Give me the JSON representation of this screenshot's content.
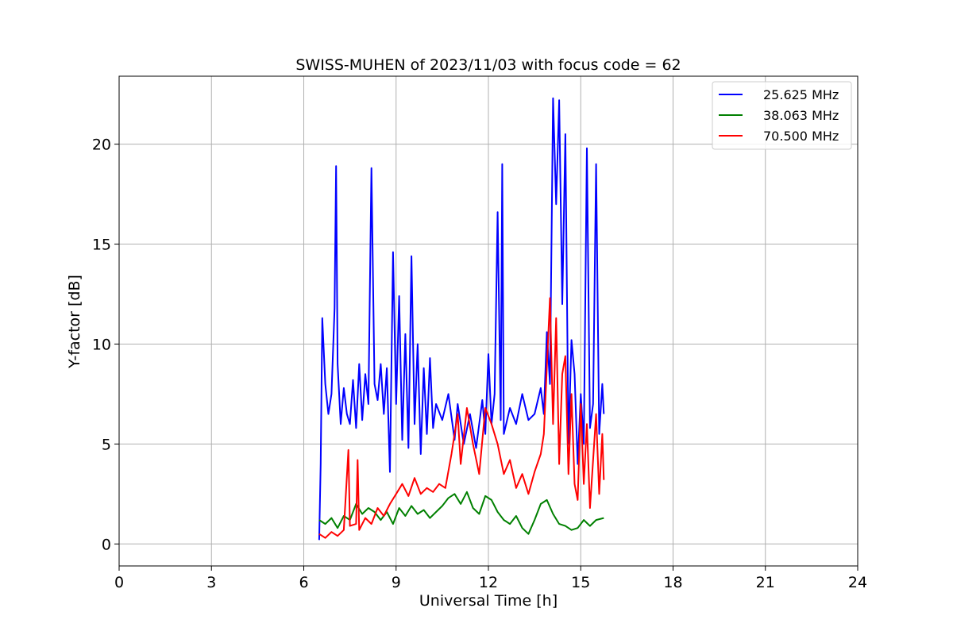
{
  "chart_data": {
    "type": "line",
    "title": "SWISS-MUHEN of 2023/11/03 with focus code = 62",
    "xlabel": "Universal Time [h]",
    "ylabel": "Y-factor [dB]",
    "xlim": [
      0,
      24
    ],
    "ylim": [
      -1.1,
      23.4
    ],
    "xticks": [
      0,
      3,
      6,
      9,
      12,
      15,
      18,
      21,
      24
    ],
    "yticks": [
      0,
      5,
      10,
      15,
      20
    ],
    "grid": true,
    "legend_position": "top-right",
    "series": [
      {
        "name": "25.625 MHz",
        "color": "#0000ff",
        "points": [
          [
            6.5,
            0.2
          ],
          [
            6.55,
            4.0
          ],
          [
            6.6,
            11.3
          ],
          [
            6.7,
            8.0
          ],
          [
            6.8,
            6.5
          ],
          [
            6.9,
            7.5
          ],
          [
            7.0,
            11.8
          ],
          [
            7.05,
            18.9
          ],
          [
            7.1,
            9.0
          ],
          [
            7.2,
            6.0
          ],
          [
            7.3,
            7.8
          ],
          [
            7.4,
            6.5
          ],
          [
            7.5,
            6.0
          ],
          [
            7.6,
            8.2
          ],
          [
            7.7,
            5.8
          ],
          [
            7.8,
            9.0
          ],
          [
            7.9,
            6.2
          ],
          [
            8.0,
            8.5
          ],
          [
            8.1,
            7.0
          ],
          [
            8.2,
            18.8
          ],
          [
            8.3,
            8.0
          ],
          [
            8.4,
            7.2
          ],
          [
            8.5,
            9.0
          ],
          [
            8.6,
            6.5
          ],
          [
            8.7,
            8.8
          ],
          [
            8.8,
            3.6
          ],
          [
            8.9,
            14.6
          ],
          [
            9.0,
            7.0
          ],
          [
            9.1,
            12.4
          ],
          [
            9.2,
            5.2
          ],
          [
            9.3,
            10.5
          ],
          [
            9.4,
            4.8
          ],
          [
            9.5,
            14.4
          ],
          [
            9.6,
            6.0
          ],
          [
            9.7,
            10.0
          ],
          [
            9.8,
            4.5
          ],
          [
            9.9,
            8.8
          ],
          [
            10.0,
            5.5
          ],
          [
            10.1,
            9.3
          ],
          [
            10.2,
            5.8
          ],
          [
            10.3,
            7.0
          ],
          [
            10.5,
            6.2
          ],
          [
            10.7,
            7.5
          ],
          [
            10.9,
            5.2
          ],
          [
            11.0,
            7.0
          ],
          [
            11.2,
            5.0
          ],
          [
            11.4,
            6.5
          ],
          [
            11.6,
            4.8
          ],
          [
            11.8,
            7.2
          ],
          [
            11.9,
            5.5
          ],
          [
            12.0,
            9.5
          ],
          [
            12.1,
            6.0
          ],
          [
            12.2,
            7.5
          ],
          [
            12.3,
            16.6
          ],
          [
            12.4,
            6.2
          ],
          [
            12.45,
            19.0
          ],
          [
            12.5,
            5.5
          ],
          [
            12.7,
            6.8
          ],
          [
            12.9,
            6.0
          ],
          [
            13.1,
            7.5
          ],
          [
            13.3,
            6.2
          ],
          [
            13.5,
            6.5
          ],
          [
            13.7,
            7.8
          ],
          [
            13.8,
            6.5
          ],
          [
            13.9,
            10.6
          ],
          [
            14.0,
            8.0
          ],
          [
            14.1,
            22.3
          ],
          [
            14.2,
            17.0
          ],
          [
            14.3,
            22.2
          ],
          [
            14.4,
            12.0
          ],
          [
            14.5,
            20.5
          ],
          [
            14.6,
            5.0
          ],
          [
            14.7,
            10.2
          ],
          [
            14.8,
            8.5
          ],
          [
            14.9,
            4.0
          ],
          [
            15.0,
            7.5
          ],
          [
            15.1,
            5.0
          ],
          [
            15.2,
            19.8
          ],
          [
            15.3,
            5.8
          ],
          [
            15.4,
            7.0
          ],
          [
            15.5,
            19.0
          ],
          [
            15.6,
            5.5
          ],
          [
            15.7,
            8.0
          ],
          [
            15.75,
            6.5
          ]
        ]
      },
      {
        "name": "38.063 MHz",
        "color": "#008000",
        "points": [
          [
            6.5,
            1.2
          ],
          [
            6.7,
            1.0
          ],
          [
            6.9,
            1.3
          ],
          [
            7.1,
            0.8
          ],
          [
            7.3,
            1.4
          ],
          [
            7.5,
            1.2
          ],
          [
            7.7,
            2.0
          ],
          [
            7.9,
            1.5
          ],
          [
            8.1,
            1.8
          ],
          [
            8.3,
            1.6
          ],
          [
            8.5,
            1.2
          ],
          [
            8.7,
            1.6
          ],
          [
            8.9,
            1.0
          ],
          [
            9.1,
            1.8
          ],
          [
            9.3,
            1.4
          ],
          [
            9.5,
            1.9
          ],
          [
            9.7,
            1.5
          ],
          [
            9.9,
            1.7
          ],
          [
            10.1,
            1.3
          ],
          [
            10.3,
            1.6
          ],
          [
            10.5,
            1.9
          ],
          [
            10.7,
            2.3
          ],
          [
            10.9,
            2.5
          ],
          [
            11.1,
            2.0
          ],
          [
            11.3,
            2.6
          ],
          [
            11.5,
            1.8
          ],
          [
            11.7,
            1.5
          ],
          [
            11.9,
            2.4
          ],
          [
            12.1,
            2.2
          ],
          [
            12.3,
            1.6
          ],
          [
            12.5,
            1.2
          ],
          [
            12.7,
            1.0
          ],
          [
            12.9,
            1.4
          ],
          [
            13.1,
            0.8
          ],
          [
            13.3,
            0.5
          ],
          [
            13.5,
            1.2
          ],
          [
            13.7,
            2.0
          ],
          [
            13.9,
            2.2
          ],
          [
            14.1,
            1.5
          ],
          [
            14.3,
            1.0
          ],
          [
            14.5,
            0.9
          ],
          [
            14.7,
            0.7
          ],
          [
            14.9,
            0.8
          ],
          [
            15.1,
            1.2
          ],
          [
            15.3,
            0.9
          ],
          [
            15.5,
            1.2
          ],
          [
            15.75,
            1.3
          ]
        ]
      },
      {
        "name": "70.500 MHz",
        "color": "#ff0000",
        "points": [
          [
            6.5,
            0.5
          ],
          [
            6.7,
            0.3
          ],
          [
            6.9,
            0.6
          ],
          [
            7.1,
            0.4
          ],
          [
            7.3,
            0.7
          ],
          [
            7.45,
            4.7
          ],
          [
            7.5,
            0.9
          ],
          [
            7.7,
            1.0
          ],
          [
            7.75,
            4.2
          ],
          [
            7.8,
            0.7
          ],
          [
            8.0,
            1.3
          ],
          [
            8.2,
            1.0
          ],
          [
            8.4,
            1.8
          ],
          [
            8.6,
            1.4
          ],
          [
            8.8,
            2.0
          ],
          [
            9.0,
            2.5
          ],
          [
            9.2,
            3.0
          ],
          [
            9.4,
            2.4
          ],
          [
            9.6,
            3.3
          ],
          [
            9.8,
            2.5
          ],
          [
            10.0,
            2.8
          ],
          [
            10.2,
            2.6
          ],
          [
            10.4,
            3.0
          ],
          [
            10.6,
            2.8
          ],
          [
            10.8,
            4.5
          ],
          [
            11.0,
            6.5
          ],
          [
            11.1,
            4.0
          ],
          [
            11.3,
            6.8
          ],
          [
            11.5,
            5.0
          ],
          [
            11.7,
            3.5
          ],
          [
            11.9,
            6.8
          ],
          [
            12.1,
            6.0
          ],
          [
            12.3,
            5.0
          ],
          [
            12.5,
            3.5
          ],
          [
            12.7,
            4.2
          ],
          [
            12.9,
            2.8
          ],
          [
            13.1,
            3.5
          ],
          [
            13.3,
            2.5
          ],
          [
            13.5,
            3.6
          ],
          [
            13.7,
            4.5
          ],
          [
            13.8,
            5.5
          ],
          [
            14.0,
            12.3
          ],
          [
            14.1,
            6.0
          ],
          [
            14.2,
            11.3
          ],
          [
            14.3,
            4.0
          ],
          [
            14.4,
            8.5
          ],
          [
            14.5,
            9.4
          ],
          [
            14.6,
            3.5
          ],
          [
            14.7,
            7.5
          ],
          [
            14.8,
            3.0
          ],
          [
            14.9,
            2.2
          ],
          [
            15.0,
            7.0
          ],
          [
            15.1,
            3.0
          ],
          [
            15.2,
            6.0
          ],
          [
            15.3,
            1.8
          ],
          [
            15.5,
            6.5
          ],
          [
            15.6,
            2.5
          ],
          [
            15.7,
            5.5
          ],
          [
            15.75,
            3.2
          ]
        ]
      }
    ]
  }
}
